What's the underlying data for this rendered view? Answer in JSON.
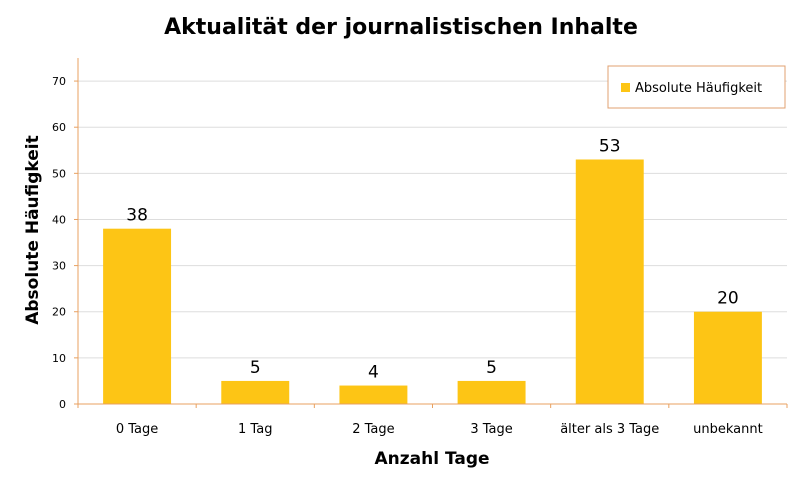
{
  "chart_data": {
    "type": "bar",
    "title": "Aktualität der journalistischen Inhalte",
    "xlabel": "Anzahl Tage",
    "ylabel": "Absolute Häufigkeit",
    "categories": [
      "0 Tage",
      "1 Tag",
      "2 Tage",
      "3 Tage",
      "älter als 3 Tage",
      "unbekannt"
    ],
    "series": [
      {
        "name": "Absolute Häufigkeit",
        "values": [
          38,
          5,
          4,
          5,
          53,
          20
        ]
      }
    ],
    "ylim": [
      0,
      75
    ],
    "yticks": [
      0,
      10,
      20,
      30,
      40,
      50,
      60,
      70
    ],
    "grid": true,
    "legend": "top-right",
    "data_labels": true,
    "colors": {
      "bar": "#fdc515",
      "axis": "#e8a060",
      "grid": "#dddddd",
      "legend_border": "#e0a070"
    }
  }
}
